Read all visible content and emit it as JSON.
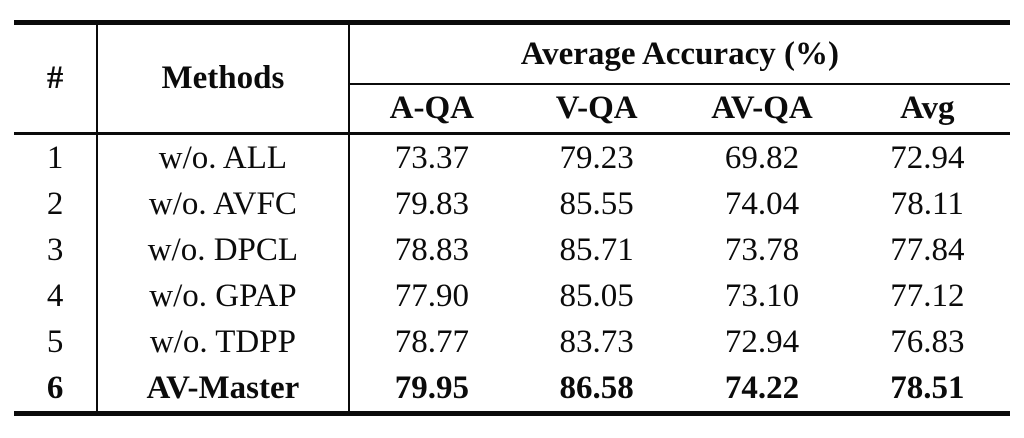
{
  "table": {
    "headers": {
      "num": "#",
      "methods": "Methods",
      "group": "Average Accuracy (%)",
      "sub": [
        "A-QA",
        "V-QA",
        "AV-QA",
        "Avg"
      ]
    },
    "rows": [
      {
        "num": "1",
        "method": "w/o. ALL",
        "values": [
          "73.37",
          "79.23",
          "69.82",
          "72.94"
        ]
      },
      {
        "num": "2",
        "method": "w/o. AVFC",
        "values": [
          "79.83",
          "85.55",
          "74.04",
          "78.11"
        ]
      },
      {
        "num": "3",
        "method": "w/o. DPCL",
        "values": [
          "78.83",
          "85.71",
          "73.78",
          "77.84"
        ]
      },
      {
        "num": "4",
        "method": "w/o. GPAP",
        "values": [
          "77.90",
          "85.05",
          "73.10",
          "77.12"
        ]
      },
      {
        "num": "5",
        "method": "w/o. TDPP",
        "values": [
          "78.77",
          "83.73",
          "72.94",
          "76.83"
        ]
      },
      {
        "num": "6",
        "method": "AV-Master",
        "values": [
          "79.95",
          "86.58",
          "74.22",
          "78.51"
        ]
      }
    ]
  }
}
